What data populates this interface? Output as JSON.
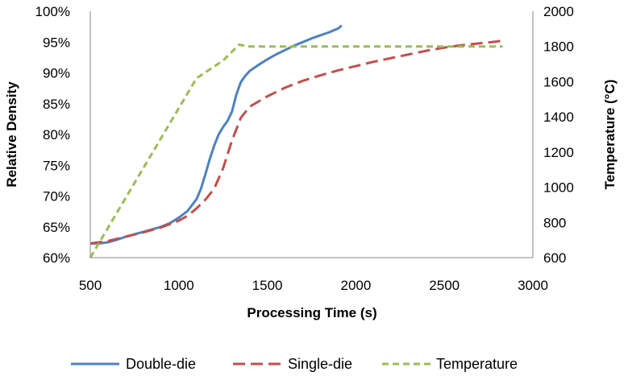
{
  "chart_data": {
    "type": "line",
    "xlabel": "Processing Time (s)",
    "ylabel": "Relative Density",
    "y2label": "Temperature (°C)",
    "xlim": [
      500,
      3000
    ],
    "ylim": [
      0.6,
      1.0
    ],
    "y2lim": [
      600,
      2000
    ],
    "x_ticks": [
      "500",
      "1000",
      "1500",
      "2000",
      "2500",
      "3000"
    ],
    "y_ticks": [
      "60%",
      "65%",
      "70%",
      "75%",
      "80%",
      "85%",
      "90%",
      "95%",
      "100%"
    ],
    "y2_ticks": [
      "600",
      "800",
      "1000",
      "1200",
      "1400",
      "1600",
      "1800",
      "2000"
    ],
    "grid": false,
    "legend": "bottom",
    "series": [
      {
        "name": "Double-die",
        "axis": "left",
        "color": "#4f81bd",
        "style": "solid",
        "x": [
          500,
          550,
          600,
          650,
          700,
          750,
          800,
          850,
          900,
          950,
          1000,
          1050,
          1100,
          1125,
          1150,
          1175,
          1200,
          1225,
          1250,
          1275,
          1300,
          1325,
          1350,
          1375,
          1400,
          1450,
          1500,
          1550,
          1600,
          1650,
          1700,
          1750,
          1800,
          1850,
          1900,
          1920
        ],
        "y": [
          0.623,
          0.623,
          0.625,
          0.629,
          0.634,
          0.638,
          0.642,
          0.646,
          0.65,
          0.656,
          0.665,
          0.676,
          0.695,
          0.712,
          0.735,
          0.76,
          0.782,
          0.8,
          0.812,
          0.822,
          0.837,
          0.865,
          0.885,
          0.895,
          0.903,
          0.913,
          0.922,
          0.93,
          0.937,
          0.944,
          0.95,
          0.956,
          0.961,
          0.966,
          0.972,
          0.977
        ]
      },
      {
        "name": "Single-die",
        "axis": "left",
        "color": "#c0504d",
        "style": "dashed",
        "x": [
          500,
          600,
          700,
          800,
          900,
          1000,
          1050,
          1100,
          1150,
          1200,
          1250,
          1300,
          1350,
          1400,
          1500,
          1600,
          1700,
          1800,
          1900,
          2000,
          2100,
          2200,
          2300,
          2400,
          2500,
          2600,
          2700,
          2800,
          2830
        ],
        "y": [
          0.623,
          0.627,
          0.634,
          0.641,
          0.649,
          0.66,
          0.668,
          0.68,
          0.694,
          0.712,
          0.745,
          0.79,
          0.827,
          0.845,
          0.862,
          0.876,
          0.887,
          0.896,
          0.904,
          0.911,
          0.918,
          0.924,
          0.93,
          0.936,
          0.941,
          0.945,
          0.948,
          0.951,
          0.953
        ]
      },
      {
        "name": "Temperature",
        "axis": "right",
        "color": "#9bbb59",
        "style": "dashed",
        "x": [
          500,
          1100,
          1250,
          1340,
          1400,
          2830
        ],
        "y": [
          600,
          1620,
          1720,
          1810,
          1800,
          1800
        ]
      }
    ]
  }
}
